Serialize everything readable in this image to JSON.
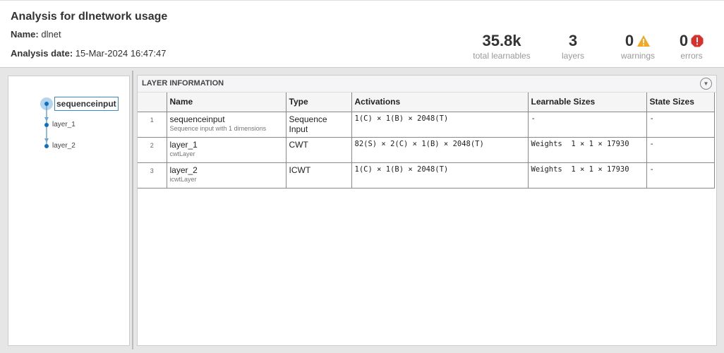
{
  "header": {
    "title": "Analysis for dlnetwork usage",
    "name_label": "Name:",
    "name_value": "dlnet",
    "date_label": "Analysis date:",
    "date_value": "15-Mar-2024 16:47:47"
  },
  "stats": [
    {
      "value": "35.8k",
      "label": "total learnables"
    },
    {
      "value": "3",
      "label": "layers"
    },
    {
      "value": "0",
      "label": "warnings",
      "icon": "warning-icon",
      "color": "#f5a623"
    },
    {
      "value": "0",
      "label": "errors",
      "icon": "error-icon",
      "color": "#d9302c"
    }
  ],
  "graph": {
    "nodes": [
      "sequenceinput",
      "layer_1",
      "layer_2"
    ],
    "selected": "sequenceinput"
  },
  "layer_info": {
    "title": "LAYER INFORMATION",
    "columns": [
      "",
      "Name",
      "Type",
      "Activations",
      "Learnable Sizes",
      "State Sizes"
    ],
    "rows": [
      {
        "index": "1",
        "name": "sequenceinput",
        "desc": "Sequence input with 1 dimensions",
        "type": "Sequence Input",
        "activations": "1(C) × 1(B) × 2048(T)",
        "learnables": "-",
        "states": "-"
      },
      {
        "index": "2",
        "name": "layer_1",
        "desc": "cwtLayer",
        "type": "CWT",
        "activations": "82(S) × 2(C) × 1(B) × 2048(T)",
        "learnables": "Weights  1 × 1 × 17930",
        "states": "-"
      },
      {
        "index": "3",
        "name": "layer_2",
        "desc": "icwtLayer",
        "type": "ICWT",
        "activations": "1(C) × 1(B) × 2048(T)",
        "learnables": "Weights  1 × 1 × 17930",
        "states": "-"
      }
    ]
  }
}
